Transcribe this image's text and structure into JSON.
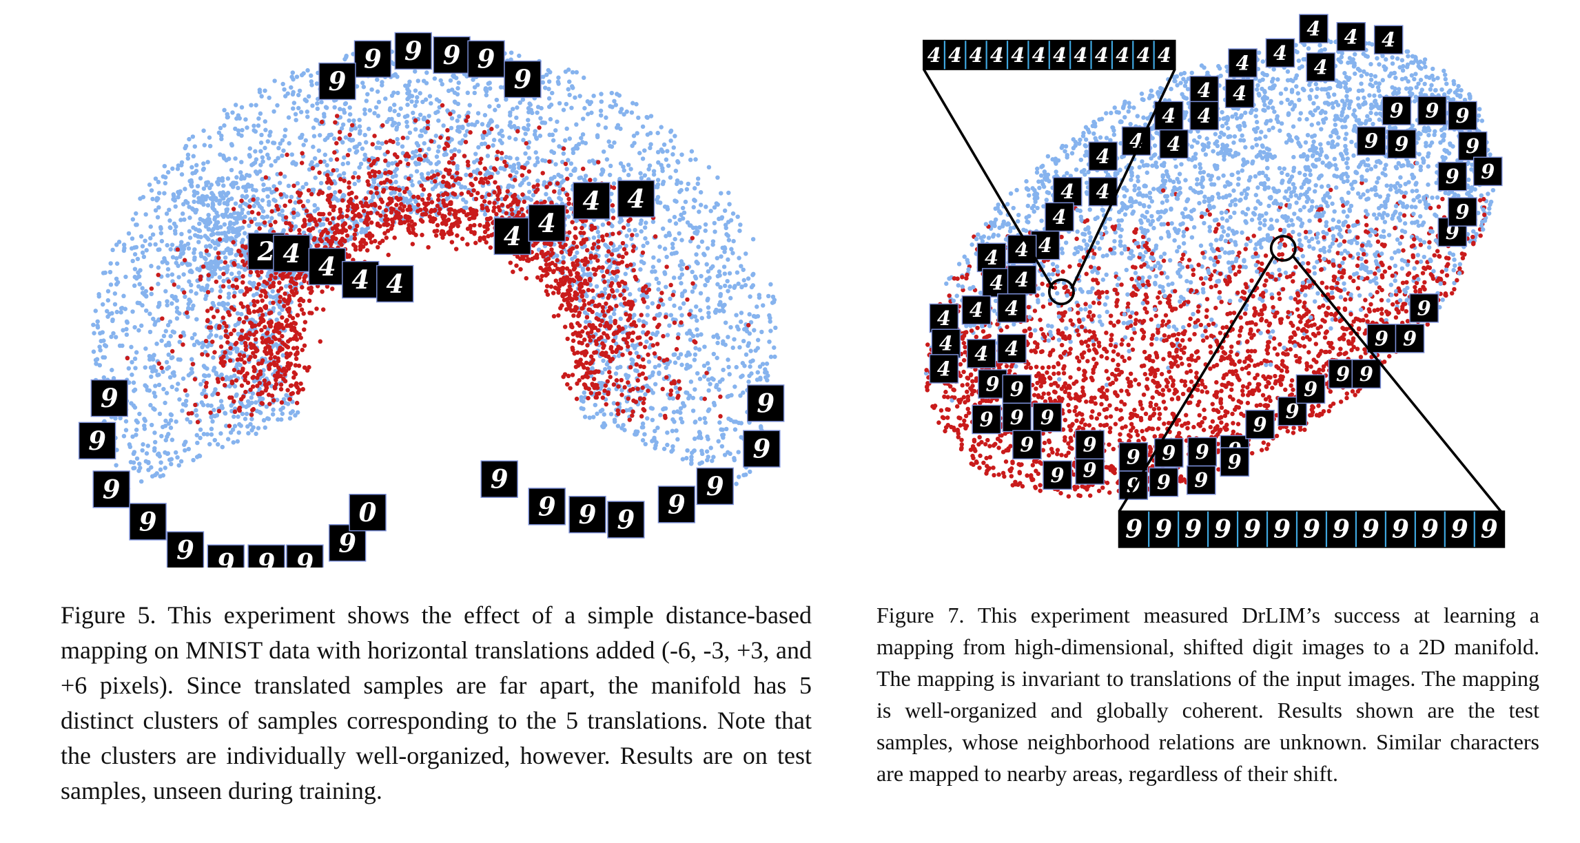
{
  "figure5": {
    "tiles": [
      "9",
      "9",
      "9",
      "9",
      "9",
      "9",
      "2",
      "4",
      "4",
      "4",
      "4",
      "4",
      "4",
      "4",
      "4",
      "9",
      "9",
      "9",
      "9",
      "9",
      "9",
      "9",
      "9",
      "9",
      "0",
      "9",
      "9",
      "9",
      "9",
      "9",
      "9",
      "9",
      "9"
    ],
    "caption": "Figure 5. This experiment shows the effect of a simple distance-based mapping on MNIST data with horizontal translations added (-6, -3, +3, and +6 pixels). Since translated samples are far apart, the manifold has 5 distinct clusters of samples corresponding to the 5 translations. Note that the clusters are individually well-organized, however. Results are on test samples, unseen during training."
  },
  "figure7": {
    "top_strip": [
      "4",
      "4",
      "4",
      "4",
      "4",
      "4",
      "4",
      "4",
      "4",
      "4",
      "4",
      "4"
    ],
    "bottom_strip": [
      "9",
      "9",
      "9",
      "9",
      "9",
      "9",
      "9",
      "9",
      "9",
      "9",
      "9",
      "9",
      "9"
    ],
    "tiles": [
      "4",
      "4",
      "4",
      "4",
      "4",
      "4",
      "4",
      "4",
      "4",
      "4",
      "4",
      "4",
      "4",
      "4",
      "4",
      "4",
      "4",
      "4",
      "4",
      "4",
      "4",
      "4",
      "4",
      "4",
      "4",
      "4",
      "4",
      "4",
      "9",
      "9",
      "9",
      "9",
      "9",
      "9",
      "9",
      "9",
      "9",
      "9",
      "9",
      "9",
      "9",
      "9",
      "9",
      "9",
      "9",
      "9",
      "9",
      "9",
      "9",
      "9",
      "9",
      "9",
      "9",
      "9",
      "9",
      "9",
      "9",
      "9",
      "9",
      "9",
      "9",
      "9",
      "9"
    ],
    "caption": "Figure 7. This experiment measured DrLIM’s success at learning a mapping from high-dimensional, shifted digit images to a 2D manifold. The mapping is invariant to translations of the input images. The mapping is well-organized and globally coherent. Results shown are the test samples, whose neighborhood relations are unknown. Similar characters are mapped to nearby areas, regardless of their shift."
  }
}
